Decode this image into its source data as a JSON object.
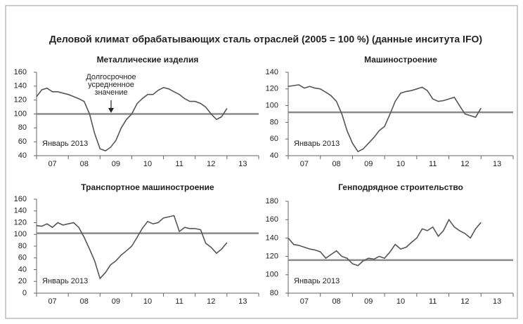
{
  "title": "Деловой климат обрабатывающих сталь отраслей (2005 = 100 %) (данные инситута IFO)",
  "chart_data": [
    {
      "type": "line",
      "title": "Металлические изделия",
      "x": [
        2007,
        2007.17,
        2007.33,
        2007.5,
        2007.67,
        2007.83,
        2008,
        2008.17,
        2008.33,
        2008.5,
        2008.67,
        2008.83,
        2009,
        2009.17,
        2009.33,
        2009.5,
        2009.67,
        2009.83,
        2010,
        2010.17,
        2010.33,
        2010.5,
        2010.67,
        2010.83,
        2011,
        2011.17,
        2011.33,
        2011.5,
        2011.67,
        2011.83,
        2012,
        2012.17,
        2012.33,
        2012.5,
        2012.67,
        2012.83,
        2013
      ],
      "series": [
        {
          "color": "#555555",
          "values": [
            125,
            135,
            137,
            132,
            132,
            130,
            128,
            125,
            122,
            118,
            100,
            72,
            50,
            47,
            52,
            62,
            80,
            92,
            100,
            115,
            122,
            128,
            128,
            134,
            138,
            136,
            132,
            128,
            122,
            118,
            118,
            115,
            110,
            100,
            92,
            96,
            108
          ]
        }
      ],
      "reference_line": 100,
      "reference_color": "#8a8a8a",
      "annotation": "Январь 2013",
      "note_lines": [
        "Долгосрочное",
        "усредненное",
        "значение"
      ],
      "xlim": [
        2007,
        2014
      ],
      "xticks": [
        {
          "value": 2007.5,
          "label": "07"
        },
        {
          "value": 2008.5,
          "label": "08"
        },
        {
          "value": 2009.5,
          "label": "09"
        },
        {
          "value": 2010.5,
          "label": "10"
        },
        {
          "value": 2011.5,
          "label": "11"
        },
        {
          "value": 2012.5,
          "label": "12"
        },
        {
          "value": 2013.5,
          "label": "13"
        }
      ],
      "ylim": [
        40,
        160
      ],
      "yticks": [
        40,
        60,
        80,
        100,
        120,
        140,
        160
      ],
      "grid": false
    },
    {
      "type": "line",
      "title": "Машиностроение",
      "x": [
        2007,
        2007.17,
        2007.33,
        2007.5,
        2007.67,
        2007.83,
        2008,
        2008.17,
        2008.33,
        2008.5,
        2008.67,
        2008.83,
        2009,
        2009.17,
        2009.33,
        2009.5,
        2009.67,
        2009.83,
        2010,
        2010.17,
        2010.33,
        2010.5,
        2010.67,
        2010.83,
        2011,
        2011.17,
        2011.33,
        2011.5,
        2011.67,
        2011.83,
        2012,
        2012.17,
        2012.33,
        2012.5,
        2012.67,
        2012.83,
        2013
      ],
      "series": [
        {
          "color": "#555555",
          "values": [
            123,
            124,
            125,
            121,
            123,
            121,
            120,
            116,
            112,
            105,
            90,
            70,
            55,
            45,
            48,
            55,
            62,
            70,
            75,
            90,
            105,
            115,
            117,
            118,
            120,
            122,
            118,
            108,
            105,
            106,
            108,
            110,
            100,
            90,
            88,
            86,
            97
          ]
        }
      ],
      "reference_line": 92,
      "reference_color": "#8a8a8a",
      "annotation": "Январь 2013",
      "xlim": [
        2007,
        2014
      ],
      "xticks": [
        {
          "value": 2007.5,
          "label": "07"
        },
        {
          "value": 2008.5,
          "label": "08"
        },
        {
          "value": 2009.5,
          "label": "09"
        },
        {
          "value": 2010.5,
          "label": "10"
        },
        {
          "value": 2011.5,
          "label": "11"
        },
        {
          "value": 2012.5,
          "label": "12"
        },
        {
          "value": 2013.5,
          "label": "13"
        }
      ],
      "ylim": [
        40,
        140
      ],
      "yticks": [
        40,
        60,
        80,
        100,
        120,
        140
      ],
      "grid": false
    },
    {
      "type": "line",
      "title": "Транспортное машиностроение",
      "x": [
        2007,
        2007.17,
        2007.33,
        2007.5,
        2007.67,
        2007.83,
        2008,
        2008.17,
        2008.33,
        2008.5,
        2008.67,
        2008.83,
        2009,
        2009.17,
        2009.33,
        2009.5,
        2009.67,
        2009.83,
        2010,
        2010.17,
        2010.33,
        2010.5,
        2010.67,
        2010.83,
        2011,
        2011.17,
        2011.33,
        2011.5,
        2011.67,
        2011.83,
        2012,
        2012.17,
        2012.33,
        2012.5,
        2012.67,
        2012.83,
        2013
      ],
      "series": [
        {
          "color": "#555555",
          "values": [
            115,
            114,
            118,
            112,
            120,
            116,
            118,
            120,
            112,
            95,
            75,
            55,
            25,
            35,
            48,
            55,
            65,
            72,
            80,
            95,
            110,
            122,
            118,
            120,
            128,
            130,
            132,
            105,
            112,
            110,
            110,
            108,
            85,
            78,
            68,
            75,
            86
          ]
        }
      ],
      "reference_line": 102,
      "reference_color": "#8a8a8a",
      "annotation": "Январь 2013",
      "xlim": [
        2007,
        2014
      ],
      "xticks": [
        {
          "value": 2007.5,
          "label": "07"
        },
        {
          "value": 2008.5,
          "label": "08"
        },
        {
          "value": 2009.5,
          "label": "09"
        },
        {
          "value": 2010.5,
          "label": "10"
        },
        {
          "value": 2011.5,
          "label": "11"
        },
        {
          "value": 2012.5,
          "label": "12"
        },
        {
          "value": 2013.5,
          "label": "13"
        }
      ],
      "ylim": [
        0,
        160
      ],
      "yticks": [
        0,
        20,
        40,
        60,
        80,
        100,
        120,
        140,
        160
      ],
      "grid": false
    },
    {
      "type": "line",
      "title": "Генподрядное строительство",
      "x": [
        2007,
        2007.17,
        2007.33,
        2007.5,
        2007.67,
        2007.83,
        2008,
        2008.17,
        2008.33,
        2008.5,
        2008.67,
        2008.83,
        2009,
        2009.17,
        2009.33,
        2009.5,
        2009.67,
        2009.83,
        2010,
        2010.17,
        2010.33,
        2010.5,
        2010.67,
        2010.83,
        2011,
        2011.17,
        2011.33,
        2011.5,
        2011.67,
        2011.83,
        2012,
        2012.17,
        2012.33,
        2012.5,
        2012.67,
        2012.83,
        2013
      ],
      "series": [
        {
          "color": "#555555",
          "values": [
            140,
            133,
            132,
            130,
            128,
            127,
            125,
            118,
            122,
            126,
            120,
            118,
            112,
            110,
            115,
            118,
            117,
            120,
            118,
            125,
            133,
            128,
            130,
            135,
            140,
            150,
            148,
            152,
            142,
            148,
            160,
            152,
            148,
            145,
            140,
            150,
            157
          ]
        }
      ],
      "reference_line": 116,
      "reference_color": "#8a8a8a",
      "annotation": "Январь 2013",
      "xlim": [
        2007,
        2014
      ],
      "xticks": [
        {
          "value": 2007.5,
          "label": "07"
        },
        {
          "value": 2008.5,
          "label": "08"
        },
        {
          "value": 2009.5,
          "label": "09"
        },
        {
          "value": 2010.5,
          "label": "10"
        },
        {
          "value": 2011.5,
          "label": "11"
        },
        {
          "value": 2012.5,
          "label": "12"
        },
        {
          "value": 2013.5,
          "label": "13"
        }
      ],
      "ylim": [
        80,
        180
      ],
      "yticks": [
        80,
        100,
        120,
        140,
        160,
        180
      ],
      "grid": false
    }
  ]
}
